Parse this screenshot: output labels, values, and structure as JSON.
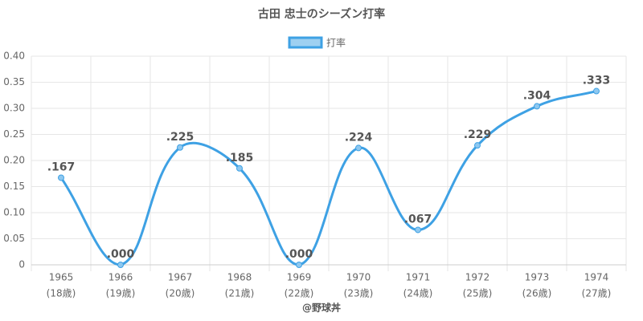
{
  "chart_data": {
    "type": "line",
    "title": "古田 忠士のシーズン打率",
    "categories": [
      [
        "1965",
        "(18歳)"
      ],
      [
        "1966",
        "(19歳)"
      ],
      [
        "1967",
        "(20歳)"
      ],
      [
        "1968",
        "(21歳)"
      ],
      [
        "1969",
        "(22歳)"
      ],
      [
        "1970",
        "(23歳)"
      ],
      [
        "1971",
        "(24歳)"
      ],
      [
        "1972",
        "(25歳)"
      ],
      [
        "1973",
        "(26歳)"
      ],
      [
        "1974",
        "(27歳)"
      ]
    ],
    "series": [
      {
        "name": "打率",
        "color": "#3ea1e4",
        "values": [
          0.167,
          0,
          0.225,
          0.185,
          0,
          0.224,
          0.067,
          0.229,
          0.304,
          0.333
        ],
        "value_labels": [
          ".167",
          ".000",
          ".225",
          ".185",
          ".000",
          ".224",
          ".067",
          ".229",
          ".304",
          ".333"
        ]
      }
    ],
    "ylim": [
      0,
      0.4
    ],
    "yticks": [
      0,
      0.05,
      {
        "value": 0.1,
        "label": "0.10"
      },
      0.15,
      {
        "value": 0.2,
        "label": "0.20"
      },
      0.25,
      {
        "value": 0.3,
        "label": "0.30"
      },
      0.35,
      {
        "value": 0.4,
        "label": "0.40"
      }
    ],
    "grid": true,
    "legend": "top",
    "credit": "@野球丼"
  }
}
